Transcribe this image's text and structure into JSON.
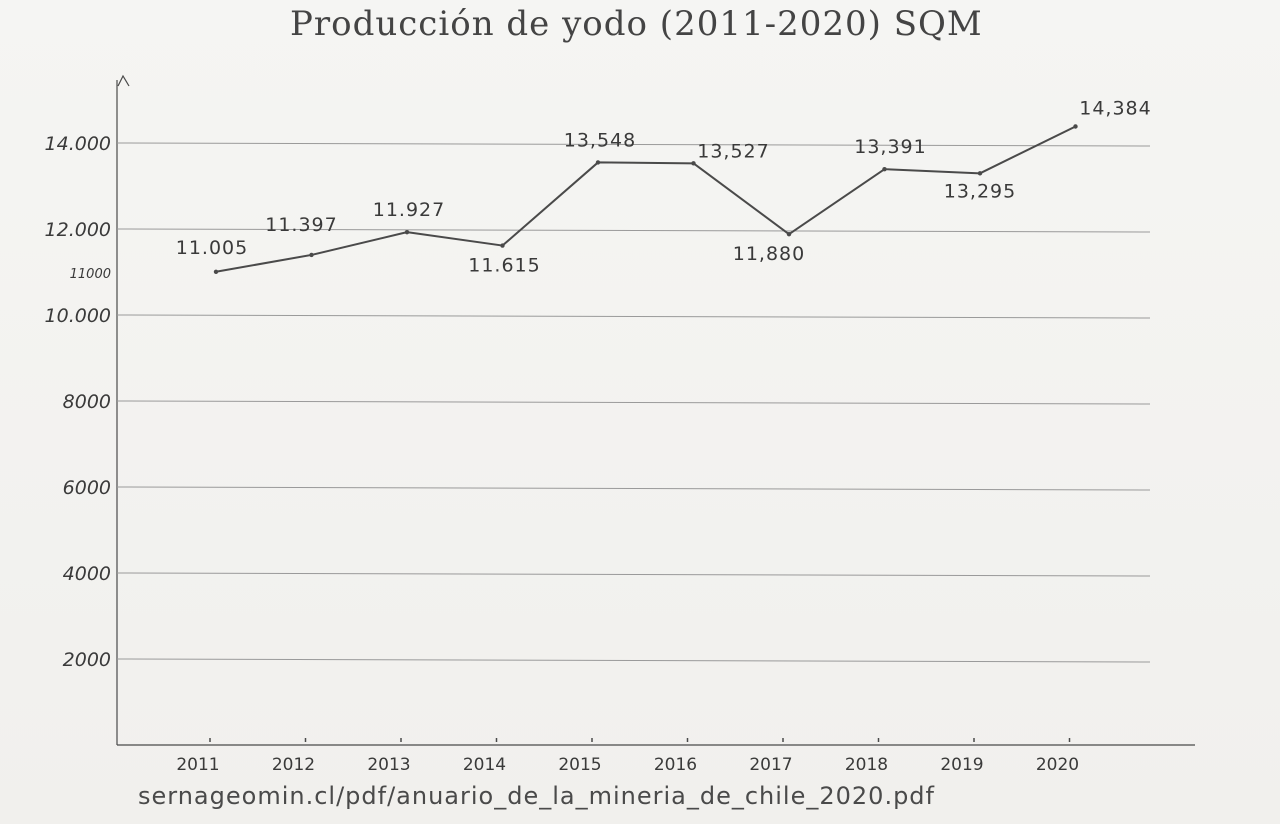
{
  "chart_data": {
    "type": "line",
    "title": "Producción de yodo (2011-2020) SQM",
    "xlabel": "",
    "ylabel": "",
    "x": [
      "2011",
      "2012",
      "2013",
      "2014",
      "2015",
      "2016",
      "2017",
      "2018",
      "2019",
      "2020"
    ],
    "series": [
      {
        "values": [
          11005,
          11397,
          11927,
          11615,
          13548,
          13527,
          11880,
          13391,
          13295,
          14384
        ]
      }
    ],
    "data_labels": [
      "11.005",
      "11.397",
      "11.927",
      "11.615",
      "13,548",
      "13,527",
      "11,880",
      "13,391",
      "13,295",
      "14,384"
    ],
    "y_ticks": [
      {
        "value": 2000,
        "label": "2000"
      },
      {
        "value": 4000,
        "label": "4000"
      },
      {
        "value": 6000,
        "label": "6000"
      },
      {
        "value": 8000,
        "label": "8000"
      },
      {
        "value": 10000,
        "label": "10.000"
      },
      {
        "value": 11000,
        "label": "11000"
      },
      {
        "value": 12000,
        "label": "12.000"
      },
      {
        "value": 14000,
        "label": "14.000"
      }
    ],
    "ylim": [
      0,
      15000
    ],
    "grid": true,
    "source": "sernageomin.cl/pdf/anuario_de_la_mineria_de_chile_2020.pdf",
    "colors": {
      "line": "#4a4a4a",
      "grid": "#9a9a9a",
      "text": "#3a3a3a"
    }
  }
}
